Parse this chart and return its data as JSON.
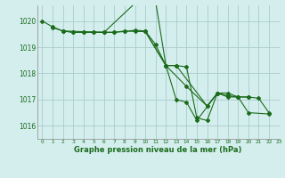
{
  "background_color": "#d4eeee",
  "grid_color": "#aacccc",
  "line_color": "#1a6b1a",
  "text_color": "#1a6b1a",
  "xlabel": "Graphe pression niveau de la mer (hPa)",
  "xlim": [
    -0.5,
    23
  ],
  "ylim": [
    1015.5,
    1020.6
  ],
  "yticks": [
    1016,
    1017,
    1018,
    1019,
    1020
  ],
  "xticks": [
    0,
    1,
    2,
    3,
    4,
    5,
    6,
    7,
    8,
    9,
    10,
    11,
    12,
    13,
    14,
    15,
    16,
    17,
    18,
    19,
    20,
    21,
    22,
    23
  ],
  "series": [
    {
      "x": [
        0,
        1,
        2,
        3,
        4,
        5,
        6,
        7,
        8,
        9,
        10,
        11,
        12,
        13,
        14,
        15,
        16,
        17,
        18,
        19,
        20,
        21,
        22
      ],
      "y": [
        1020.0,
        1019.78,
        1019.62,
        1019.57,
        1019.57,
        1019.57,
        1019.57,
        1019.57,
        1019.6,
        1019.65,
        1019.62,
        1019.1,
        1018.3,
        1018.3,
        1018.25,
        1016.3,
        1016.2,
        1017.25,
        1017.15,
        1017.1,
        1017.1,
        1017.05,
        1016.5
      ]
    },
    {
      "x": [
        1,
        2,
        6,
        10,
        11,
        12,
        14,
        16,
        17
      ],
      "y": [
        1019.75,
        1019.62,
        1019.57,
        1021.05,
        1020.75,
        1018.3,
        1017.5,
        1016.75,
        1017.25
      ]
    },
    {
      "x": [
        2,
        3,
        4,
        5,
        6,
        7,
        8,
        9,
        10,
        12,
        13,
        14,
        15,
        17,
        18,
        19,
        20
      ],
      "y": [
        1019.62,
        1019.57,
        1019.57,
        1019.57,
        1019.57,
        1019.57,
        1019.62,
        1019.6,
        1019.6,
        1018.3,
        1017.0,
        1016.9,
        1016.2,
        1017.25,
        1017.1,
        1017.1,
        1017.1
      ]
    },
    {
      "x": [
        10,
        12,
        13,
        16,
        17,
        18,
        19,
        20,
        22
      ],
      "y": [
        1019.6,
        1018.3,
        1018.3,
        1016.75,
        1017.25,
        1017.25,
        1017.1,
        1016.5,
        1016.45
      ]
    }
  ]
}
